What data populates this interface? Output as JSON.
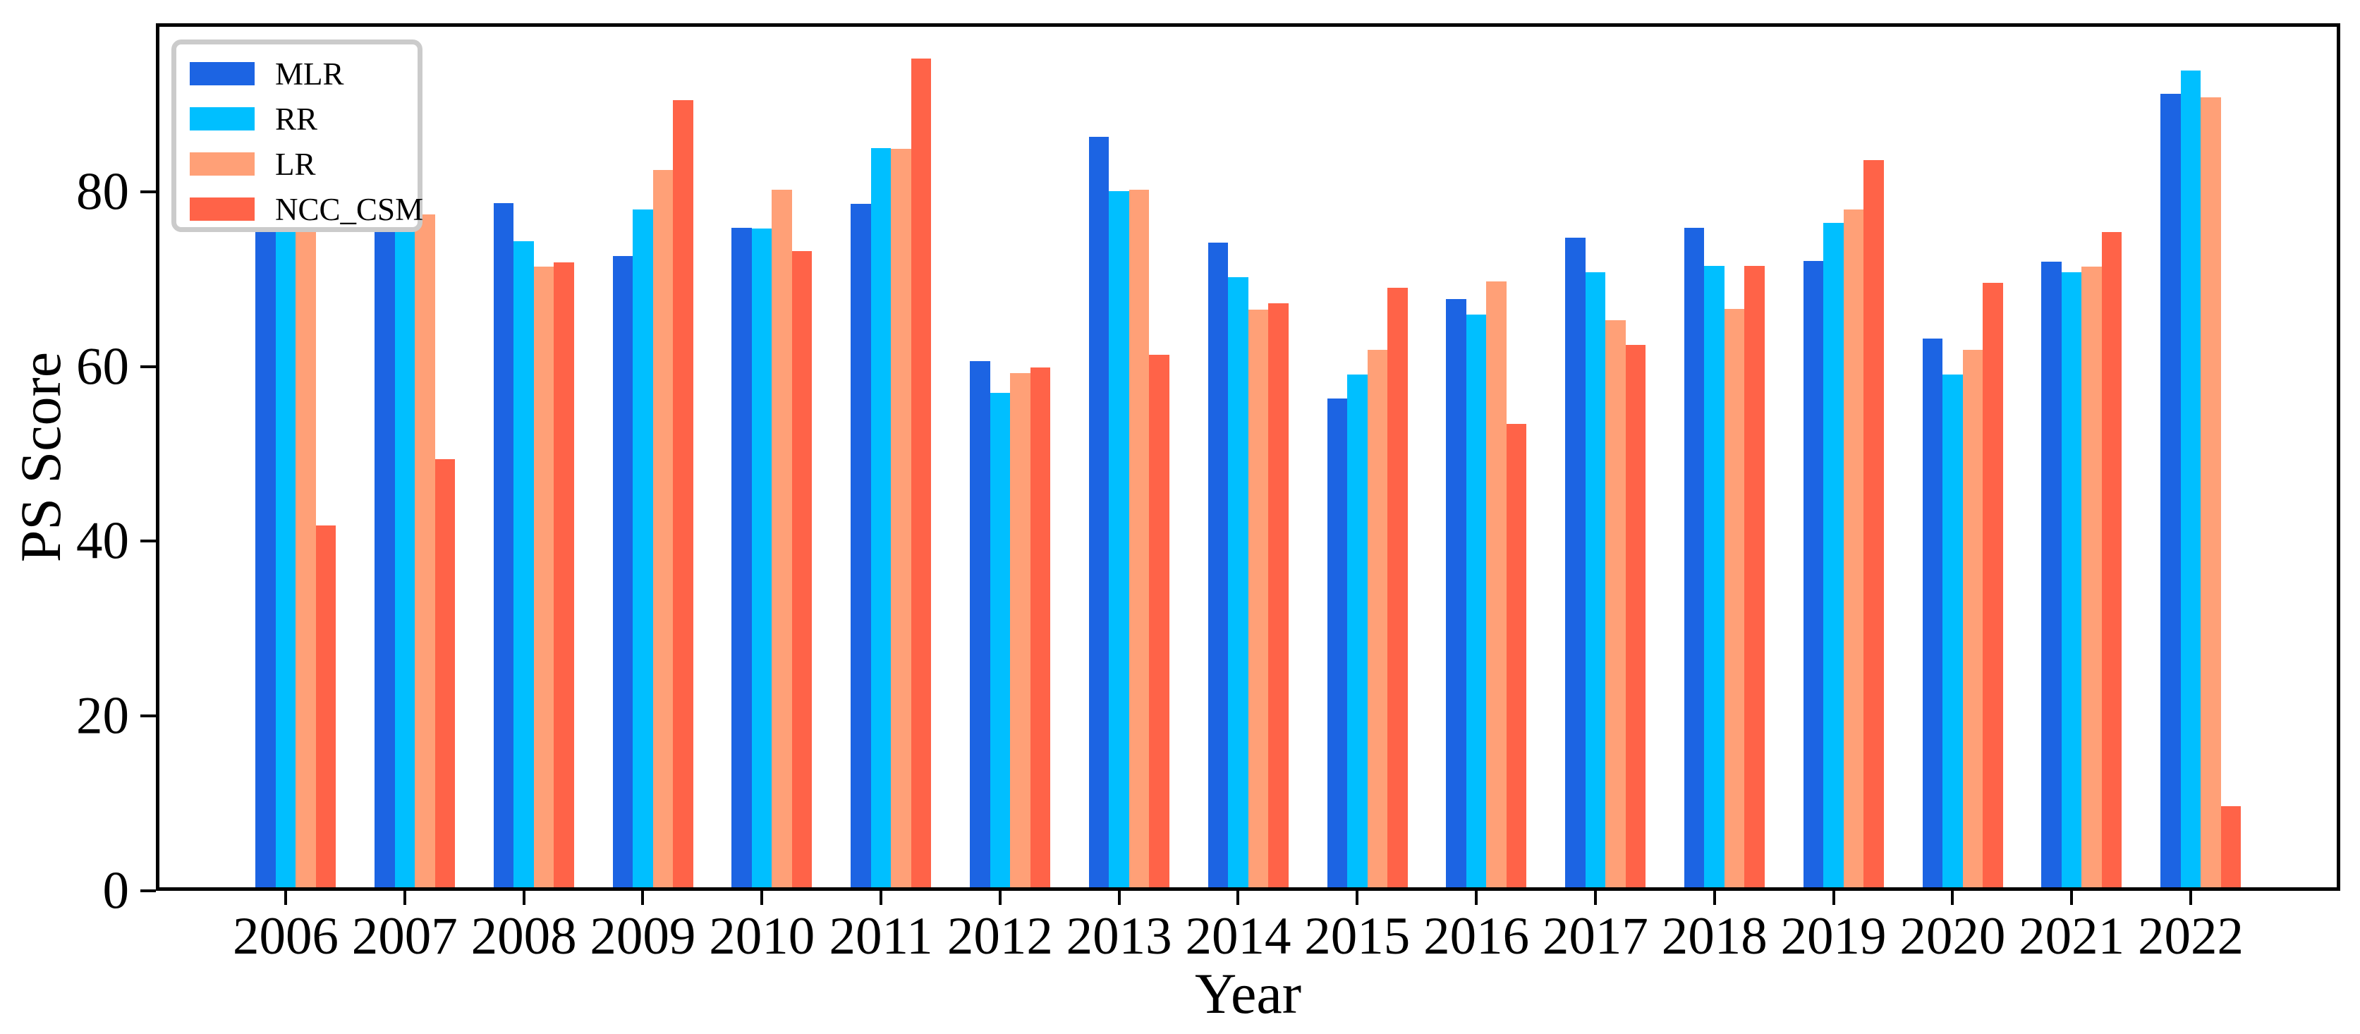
{
  "figure": {
    "xlabel": "Year",
    "ylabel": "PS Score",
    "background": "#ffffff",
    "axis_color": "#000000",
    "legend_border_color": "#cbcbcb",
    "legend_position": "upper left"
  },
  "chart_data": {
    "type": "bar",
    "title": "",
    "xlabel": "Year",
    "ylabel": "PS Score",
    "categories": [
      "2006",
      "2007",
      "2008",
      "2009",
      "2010",
      "2011",
      "2012",
      "2013",
      "2014",
      "2015",
      "2016",
      "2017",
      "2018",
      "2019",
      "2020",
      "2021",
      "2022"
    ],
    "series": [
      {
        "name": "MLR",
        "color": "#1C64E3",
        "values": [
          76.0,
          75.5,
          78.3,
          72.2,
          75.5,
          78.2,
          60.2,
          85.9,
          73.8,
          55.9,
          67.3,
          74.3,
          75.5,
          71.7,
          62.8,
          71.6,
          90.8
        ]
      },
      {
        "name": "RR",
        "color": "#00BFFF",
        "values": [
          76.0,
          75.5,
          73.9,
          77.6,
          75.4,
          84.6,
          56.6,
          79.7,
          69.8,
          58.7,
          65.5,
          70.4,
          71.1,
          76.0,
          58.7,
          70.4,
          93.5
        ]
      },
      {
        "name": "LR",
        "color": "#FFA077",
        "values": [
          76.2,
          77.0,
          71.0,
          82.1,
          79.8,
          84.5,
          58.8,
          79.8,
          66.1,
          61.5,
          69.3,
          64.9,
          66.2,
          77.6,
          61.5,
          71.0,
          90.4
        ]
      },
      {
        "name": "NCC_CSM",
        "color": "#FF6348",
        "values": [
          41.4,
          49.0,
          71.5,
          90.1,
          72.8,
          94.8,
          59.5,
          60.9,
          66.8,
          68.6,
          53.0,
          62.1,
          71.1,
          83.2,
          69.2,
          75.0,
          9.3
        ]
      }
    ],
    "yticks": [
      0,
      20,
      40,
      60,
      80
    ],
    "ylim": [
      0,
      99.3
    ],
    "grid": false,
    "legend_position": "upper left"
  }
}
